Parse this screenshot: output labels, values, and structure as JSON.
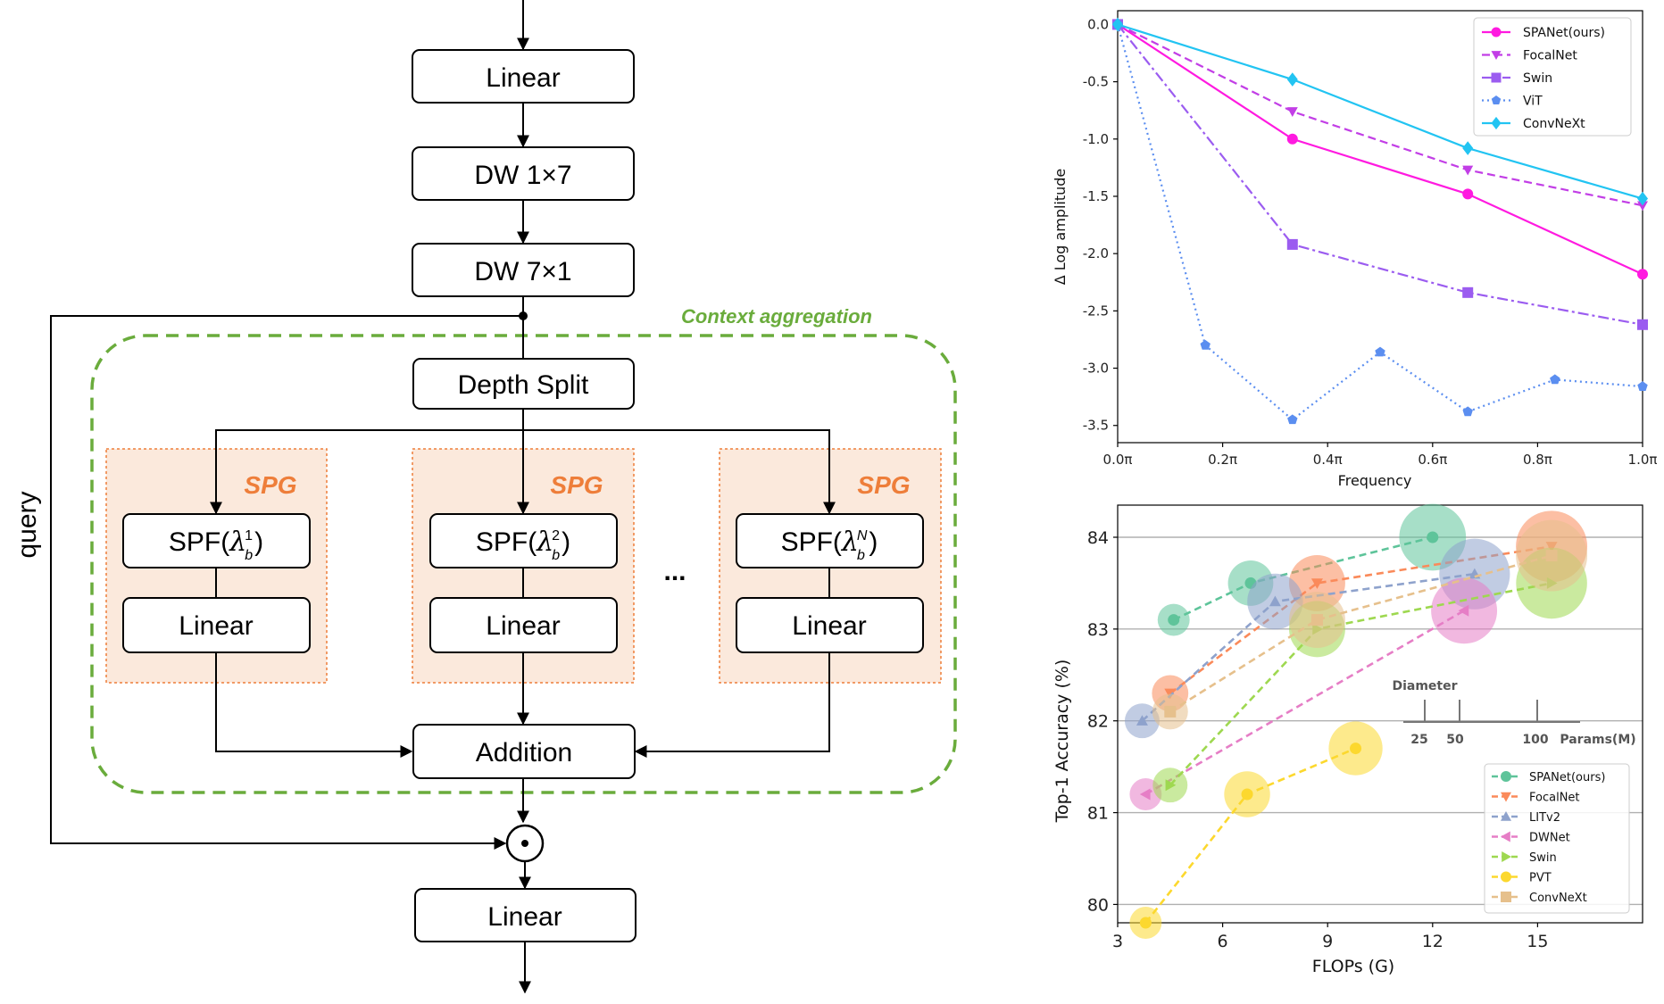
{
  "diagram": {
    "boxes": {
      "linear_top": "Linear",
      "dw_1x7": "DW 1×7",
      "dw_7x1": "DW 7×1",
      "depth_split": "Depth Split",
      "addition": "Addition",
      "linear_bottom": "Linear"
    },
    "context_label": "Context aggregation",
    "query_label": "query",
    "ellipsis": "...",
    "branches": [
      {
        "spg": "SPG",
        "spf": "SPF(",
        "sup": "1",
        "linear": "Linear"
      },
      {
        "spg": "SPG",
        "spf": "SPF(",
        "sup": "2",
        "linear": "Linear"
      },
      {
        "spg": "SPG",
        "spf": "SPF(",
        "sup": "N",
        "linear": "Linear"
      }
    ],
    "lambda": "λ",
    "sub_b": "b",
    "close_paren": ")",
    "multiply_symbol": "⊙",
    "colors": {
      "spg_fill": "#fbe9dc",
      "spg_border": "#ee7e3a",
      "context_border": "#6aac3c"
    }
  },
  "chart_data": [
    {
      "type": "line",
      "xlabel": "Frequency",
      "ylabel": "Δ Log amplitude",
      "xlim": [
        0,
        1
      ],
      "ylim": [
        -3.65,
        0.12
      ],
      "xticks": [
        "0.0π",
        "0.2π",
        "0.4π",
        "0.6π",
        "0.8π",
        "1.0π"
      ],
      "yticks": [
        "0.0",
        "-0.5",
        "-1.0",
        "-1.5",
        "-2.0",
        "-2.5",
        "-3.0",
        "-3.5"
      ],
      "legend_position": "top-right",
      "series": [
        {
          "name": "SPANet(ours)",
          "color": "#ff1ae0",
          "marker": "circle",
          "dash": "solid",
          "x": [
            0,
            0.333,
            0.667,
            1.0
          ],
          "y": [
            0,
            -1.0,
            -1.48,
            -2.18
          ]
        },
        {
          "name": "FocalNet",
          "color": "#c23ee6",
          "marker": "triangle-down",
          "dash": "dashed",
          "x": [
            0,
            0.333,
            0.667,
            1.0
          ],
          "y": [
            0,
            -0.76,
            -1.27,
            -1.58
          ]
        },
        {
          "name": "Swin",
          "color": "#9b5cf0",
          "marker": "square",
          "dash": "dashdot",
          "x": [
            0,
            0.333,
            0.667,
            1.0
          ],
          "y": [
            0,
            -1.92,
            -2.34,
            -2.62
          ]
        },
        {
          "name": "ViT",
          "color": "#5b8ef0",
          "marker": "pentagon",
          "dash": "dotted",
          "x": [
            0,
            0.167,
            0.333,
            0.5,
            0.667,
            0.833,
            1.0
          ],
          "y": [
            0,
            -2.8,
            -3.45,
            -2.86,
            -3.38,
            -3.1,
            -3.16
          ]
        },
        {
          "name": "ConvNeXt",
          "color": "#22c4f2",
          "marker": "diamond",
          "dash": "solid",
          "x": [
            0,
            0.333,
            0.667,
            1.0
          ],
          "y": [
            0,
            -0.48,
            -1.08,
            -1.52
          ]
        }
      ]
    },
    {
      "type": "scatter",
      "xlabel": "FLOPs (G)",
      "ylabel": "Top-1 Accuracy (%)",
      "xlim": [
        3,
        18
      ],
      "ylim": [
        79.8,
        84.35
      ],
      "xticks": [
        3,
        6,
        9,
        12,
        15
      ],
      "yticks": [
        80,
        81,
        82,
        83,
        84
      ],
      "grid": "horizontal",
      "legend_position": "bottom-right",
      "size_legend": {
        "title": "Diameter",
        "labels": [
          "25",
          "50",
          "100"
        ],
        "unit": "Params(M)"
      },
      "series": [
        {
          "name": "SPANet(ours)",
          "color": "#5ec49a",
          "marker": "circle",
          "points": [
            {
              "x": 4.6,
              "y": 83.1,
              "params": 11
            },
            {
              "x": 6.8,
              "y": 83.5,
              "params": 29
            },
            {
              "x": 12.0,
              "y": 84.0,
              "params": 76
            }
          ]
        },
        {
          "name": "FocalNet",
          "color": "#fa8a5a",
          "marker": "triangle-down",
          "points": [
            {
              "x": 4.5,
              "y": 82.3,
              "params": 16
            },
            {
              "x": 8.7,
              "y": 83.5,
              "params": 50
            },
            {
              "x": 15.4,
              "y": 83.9,
              "params": 89
            }
          ]
        },
        {
          "name": "LITv2",
          "color": "#8ea2cc",
          "marker": "triangle-up",
          "points": [
            {
              "x": 3.7,
              "y": 82.0,
              "params": 14
            },
            {
              "x": 7.5,
              "y": 83.3,
              "params": 49
            },
            {
              "x": 13.2,
              "y": 83.6,
              "params": 87
            }
          ]
        },
        {
          "name": "DWNet",
          "color": "#e67ec6",
          "marker": "triangle-left",
          "points": [
            {
              "x": 3.8,
              "y": 81.2,
              "params": 11
            },
            {
              "x": 12.9,
              "y": 83.2,
              "params": 74
            }
          ]
        },
        {
          "name": "Swin",
          "color": "#9ed850",
          "marker": "triangle-right",
          "points": [
            {
              "x": 4.5,
              "y": 81.3,
              "params": 14
            },
            {
              "x": 8.7,
              "y": 83.0,
              "params": 50
            },
            {
              "x": 15.4,
              "y": 83.5,
              "params": 88
            }
          ]
        },
        {
          "name": "PVT",
          "color": "#fcd82e",
          "marker": "circle",
          "points": [
            {
              "x": 3.8,
              "y": 79.8,
              "params": 11
            },
            {
              "x": 6.7,
              "y": 81.2,
              "params": 30
            },
            {
              "x": 9.8,
              "y": 81.7,
              "params": 45
            }
          ]
        },
        {
          "name": "ConvNeXt",
          "color": "#e6c08c",
          "marker": "square",
          "points": [
            {
              "x": 4.5,
              "y": 82.1,
              "params": 15
            },
            {
              "x": 8.7,
              "y": 83.1,
              "params": 50
            },
            {
              "x": 15.4,
              "y": 83.8,
              "params": 89
            }
          ]
        }
      ]
    }
  ]
}
